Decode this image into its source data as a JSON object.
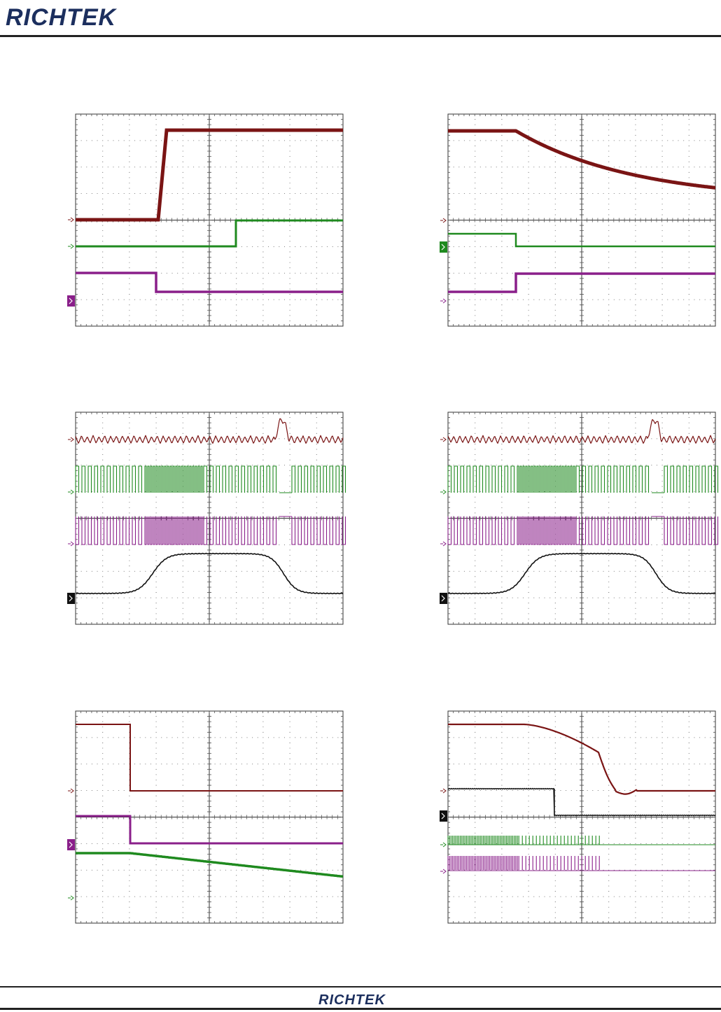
{
  "header": {
    "brand": "RICHTEK"
  },
  "footer": {
    "brand": "RICHTEK"
  },
  "colors": {
    "ch_red": "#7a1414",
    "ch_green": "#1f8a1f",
    "ch_purple": "#8a1f8a",
    "ch_black": "#111111",
    "grid": "#444444"
  },
  "scope_captures": [
    {
      "id": "capture-1",
      "channels": [
        "red",
        "green",
        "purple"
      ],
      "active_marker": "purple"
    },
    {
      "id": "capture-2",
      "channels": [
        "red",
        "green",
        "purple"
      ],
      "active_marker": "green"
    },
    {
      "id": "capture-3",
      "channels": [
        "red",
        "green",
        "purple",
        "black"
      ],
      "active_marker": "black"
    },
    {
      "id": "capture-4",
      "channels": [
        "red",
        "green",
        "purple",
        "black"
      ],
      "active_marker": "black"
    },
    {
      "id": "capture-5",
      "channels": [
        "red",
        "purple",
        "green"
      ],
      "active_marker": "purple"
    },
    {
      "id": "capture-6",
      "channels": [
        "red",
        "black",
        "green",
        "purple"
      ],
      "active_marker": "black"
    }
  ]
}
